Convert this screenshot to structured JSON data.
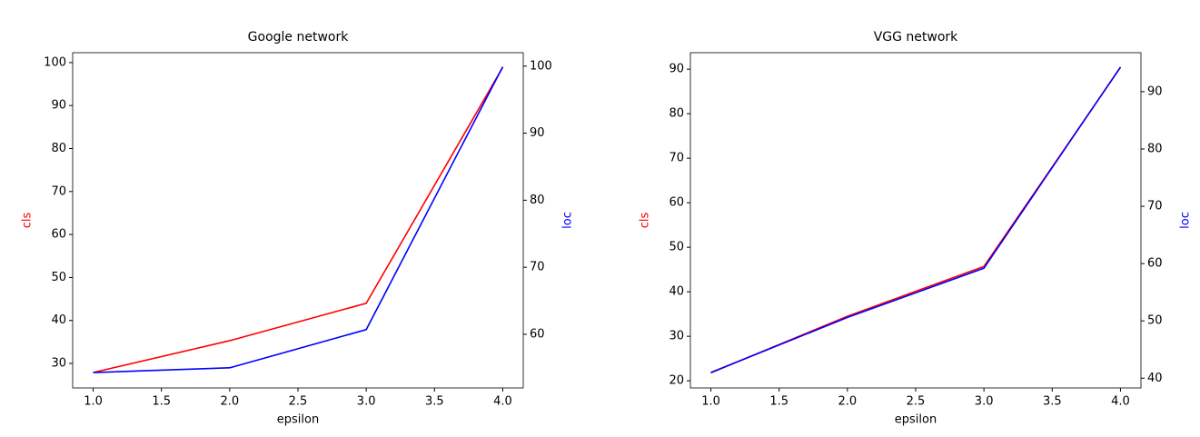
{
  "chart_data": [
    {
      "type": "line",
      "title": "Google network",
      "xlabel": "epsilon",
      "ylabel": "cls",
      "y2label": "loc",
      "x": [
        1,
        2,
        3,
        4
      ],
      "xlim": [
        0.85,
        4.15
      ],
      "xticks": [
        {
          "value": 1,
          "label": "1.0"
        },
        {
          "value": 1.5,
          "label": "1.5"
        },
        {
          "value": 2,
          "label": "2.0"
        },
        {
          "value": 2.5,
          "label": "2.5"
        },
        {
          "value": 3,
          "label": "3.0"
        },
        {
          "value": 3.5,
          "label": "3.5"
        },
        {
          "value": 4,
          "label": "4.0"
        }
      ],
      "ylim": [
        24.3,
        102.3
      ],
      "yticks": [
        30,
        40,
        50,
        60,
        70,
        80,
        90,
        100
      ],
      "y2lim": [
        52,
        102
      ],
      "y2ticks": [
        60,
        70,
        80,
        90,
        100
      ],
      "series": [
        {
          "color": "#ff0000",
          "values": [
            27.9,
            35.3,
            44,
            98.9
          ]
        },
        {
          "color": "#0000ff",
          "axis": "y2",
          "values": [
            54.3,
            55.0,
            60.7,
            99.9
          ]
        }
      ]
    },
    {
      "type": "line",
      "title": "VGG network",
      "xlabel": "epsilon",
      "ylabel": "cls",
      "y2label": "loc",
      "x": [
        1,
        2,
        3,
        4
      ],
      "xlim": [
        0.85,
        4.15
      ],
      "xticks": [
        {
          "value": 1,
          "label": "1.0"
        },
        {
          "value": 1.5,
          "label": "1.5"
        },
        {
          "value": 2,
          "label": "2.0"
        },
        {
          "value": 2.5,
          "label": "2.5"
        },
        {
          "value": 3,
          "label": "3.0"
        },
        {
          "value": 3.5,
          "label": "3.5"
        },
        {
          "value": 4,
          "label": "4.0"
        }
      ],
      "ylim": [
        18.4,
        93.7
      ],
      "yticks": [
        20,
        30,
        40,
        50,
        60,
        70,
        80,
        90
      ],
      "y2lim": [
        38.3,
        96.8
      ],
      "y2ticks": [
        40,
        50,
        60,
        70,
        80,
        90
      ],
      "series": [
        {
          "color": "#ff0000",
          "values": [
            21.8,
            34.5,
            45.7,
            90.4
          ]
        },
        {
          "color": "#0000ff",
          "axis": "y2",
          "values": [
            41.0,
            50.6,
            59.2,
            94.3
          ]
        }
      ]
    }
  ]
}
